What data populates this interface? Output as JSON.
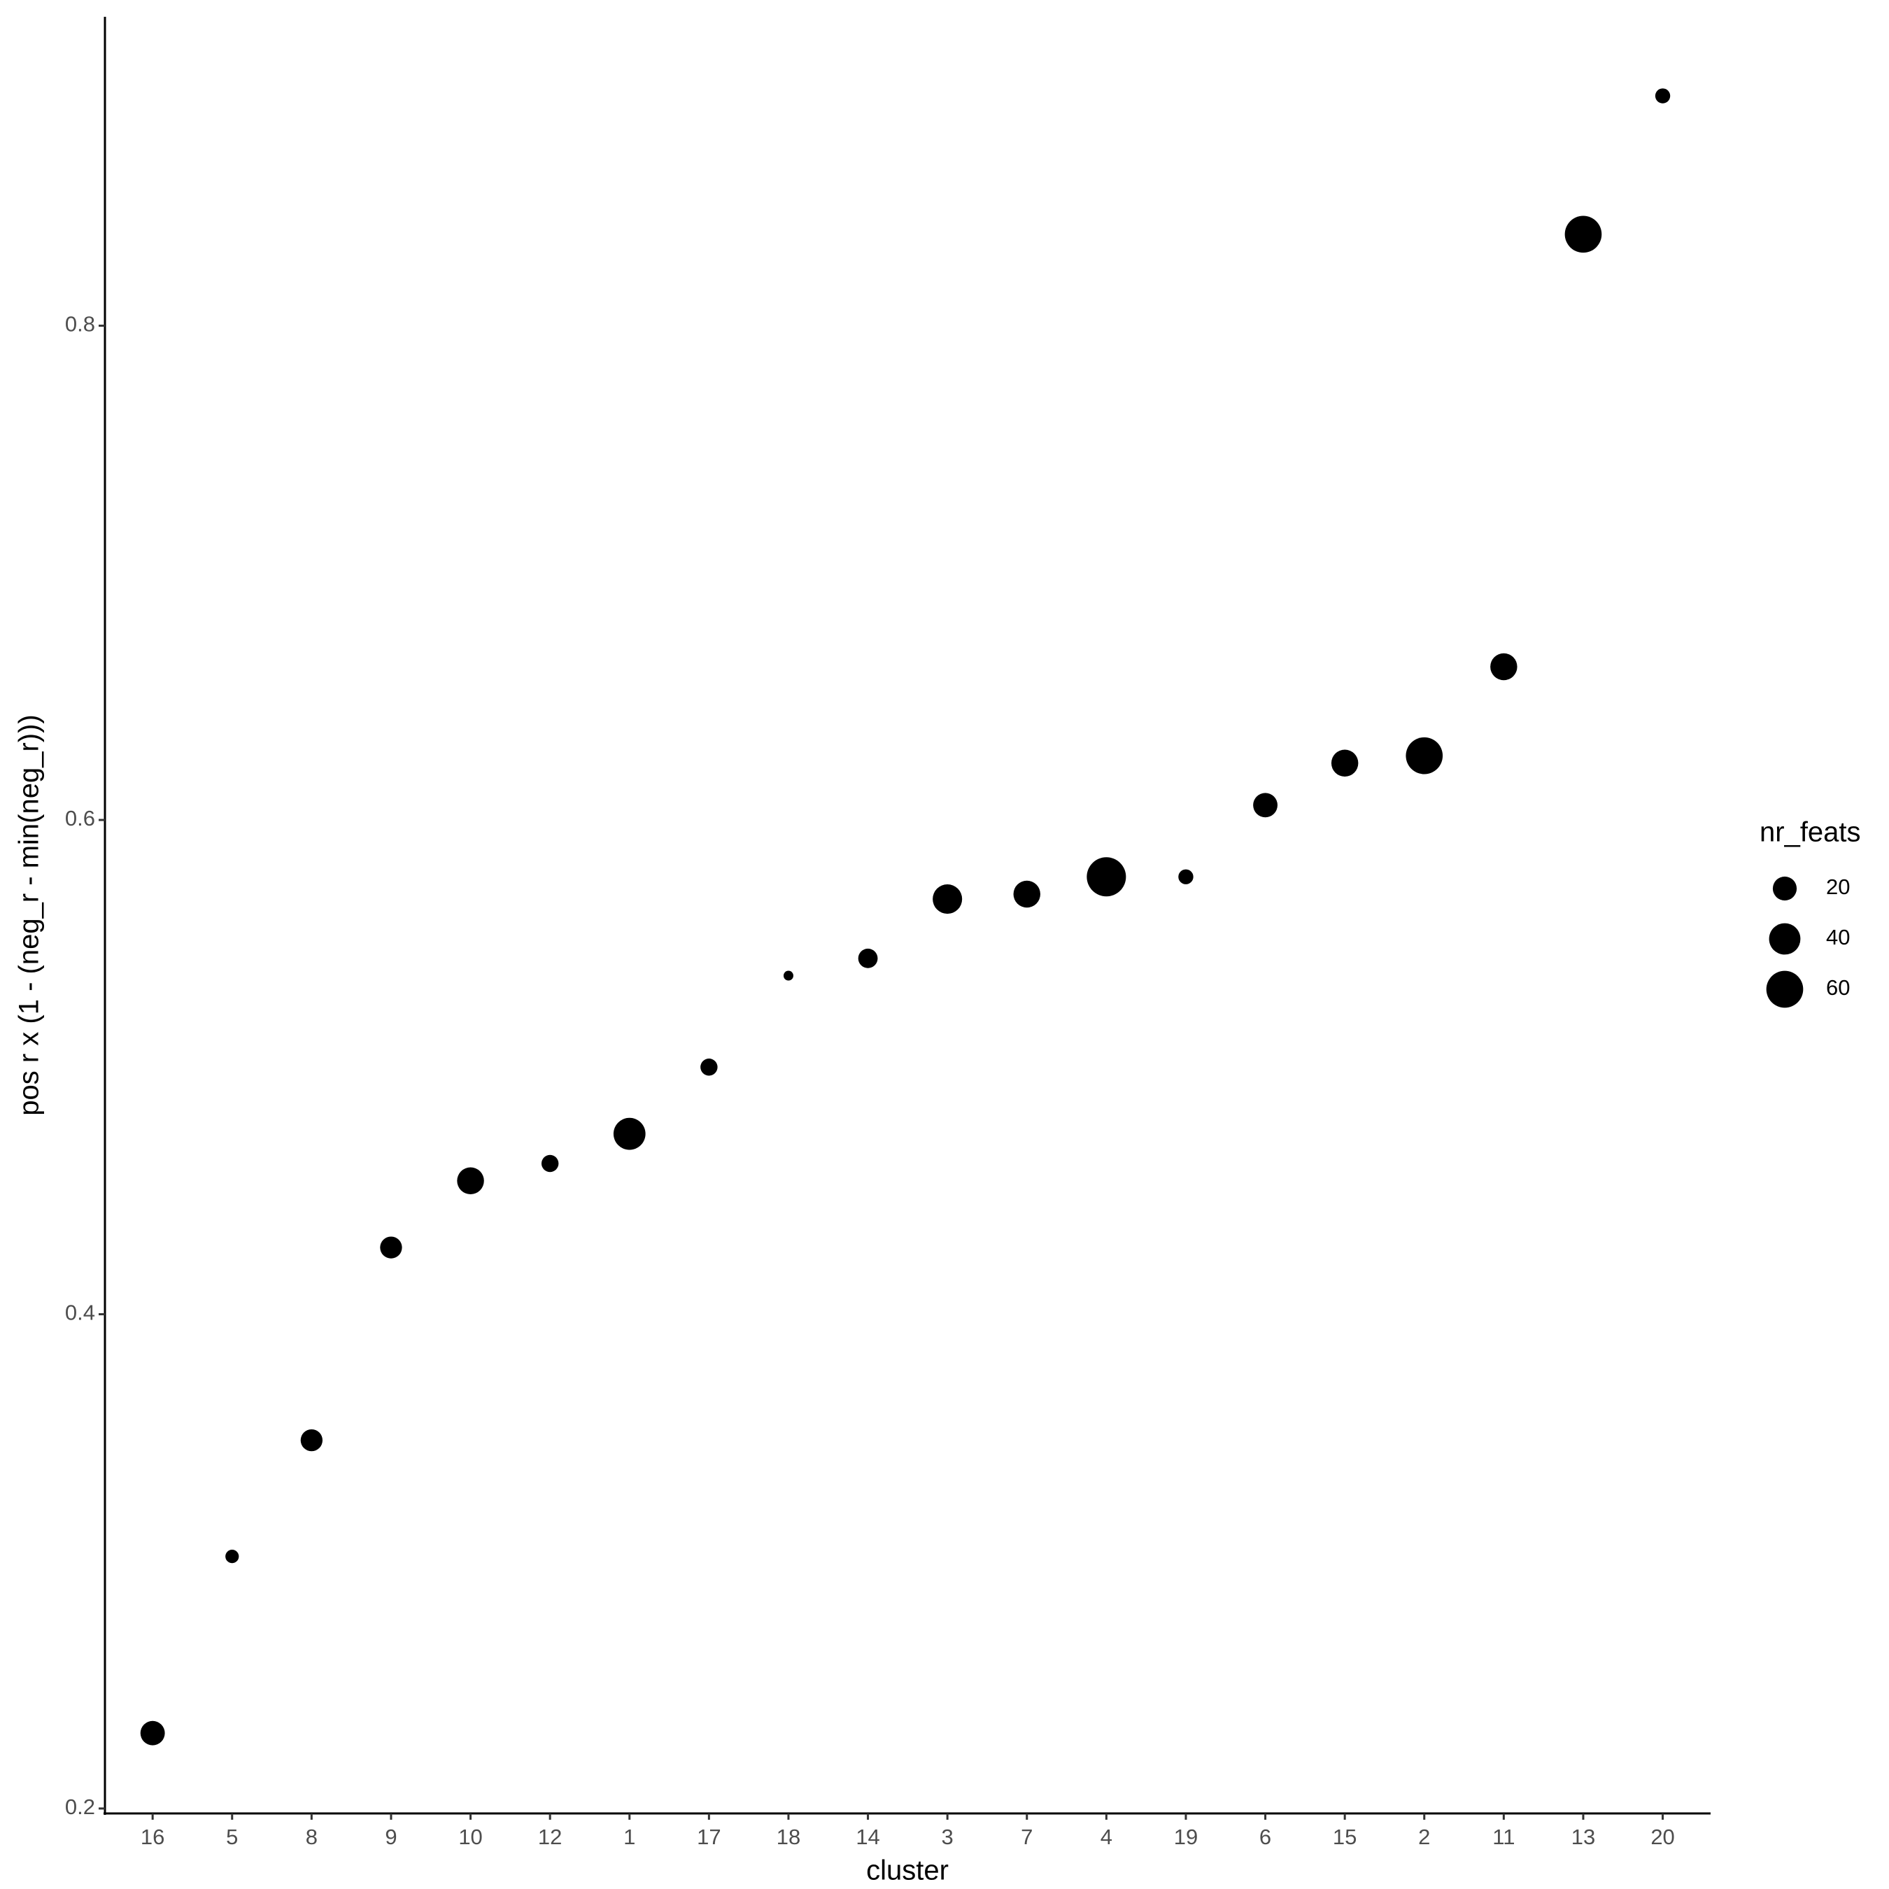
{
  "chart_data": {
    "type": "scatter",
    "x_label": "cluster",
    "y_label": "pos r x (1 - (neg_r - min(neg_r)))",
    "categories": [
      "16",
      "5",
      "8",
      "9",
      "10",
      "12",
      "1",
      "17",
      "18",
      "14",
      "3",
      "7",
      "4",
      "19",
      "6",
      "15",
      "2",
      "11",
      "13",
      "20"
    ],
    "values": [
      0.2305,
      0.302,
      0.349,
      0.427,
      0.454,
      0.461,
      0.473,
      0.5,
      0.537,
      0.544,
      0.568,
      0.57,
      0.577,
      0.577,
      0.606,
      0.623,
      0.626,
      0.662,
      0.837,
      0.893
    ],
    "sizes": [
      21,
      6,
      16,
      16,
      27,
      9,
      42,
      9,
      5,
      12,
      34,
      27,
      70,
      7,
      21,
      27,
      60,
      27,
      60,
      7
    ],
    "size_name": "nr_feats",
    "size_legend": [
      20,
      40,
      60
    ],
    "color": "#000000",
    "ylim": [
      0.198,
      0.925
    ],
    "yticks": [
      0.2,
      0.4,
      0.6,
      0.8
    ],
    "grid": false
  }
}
